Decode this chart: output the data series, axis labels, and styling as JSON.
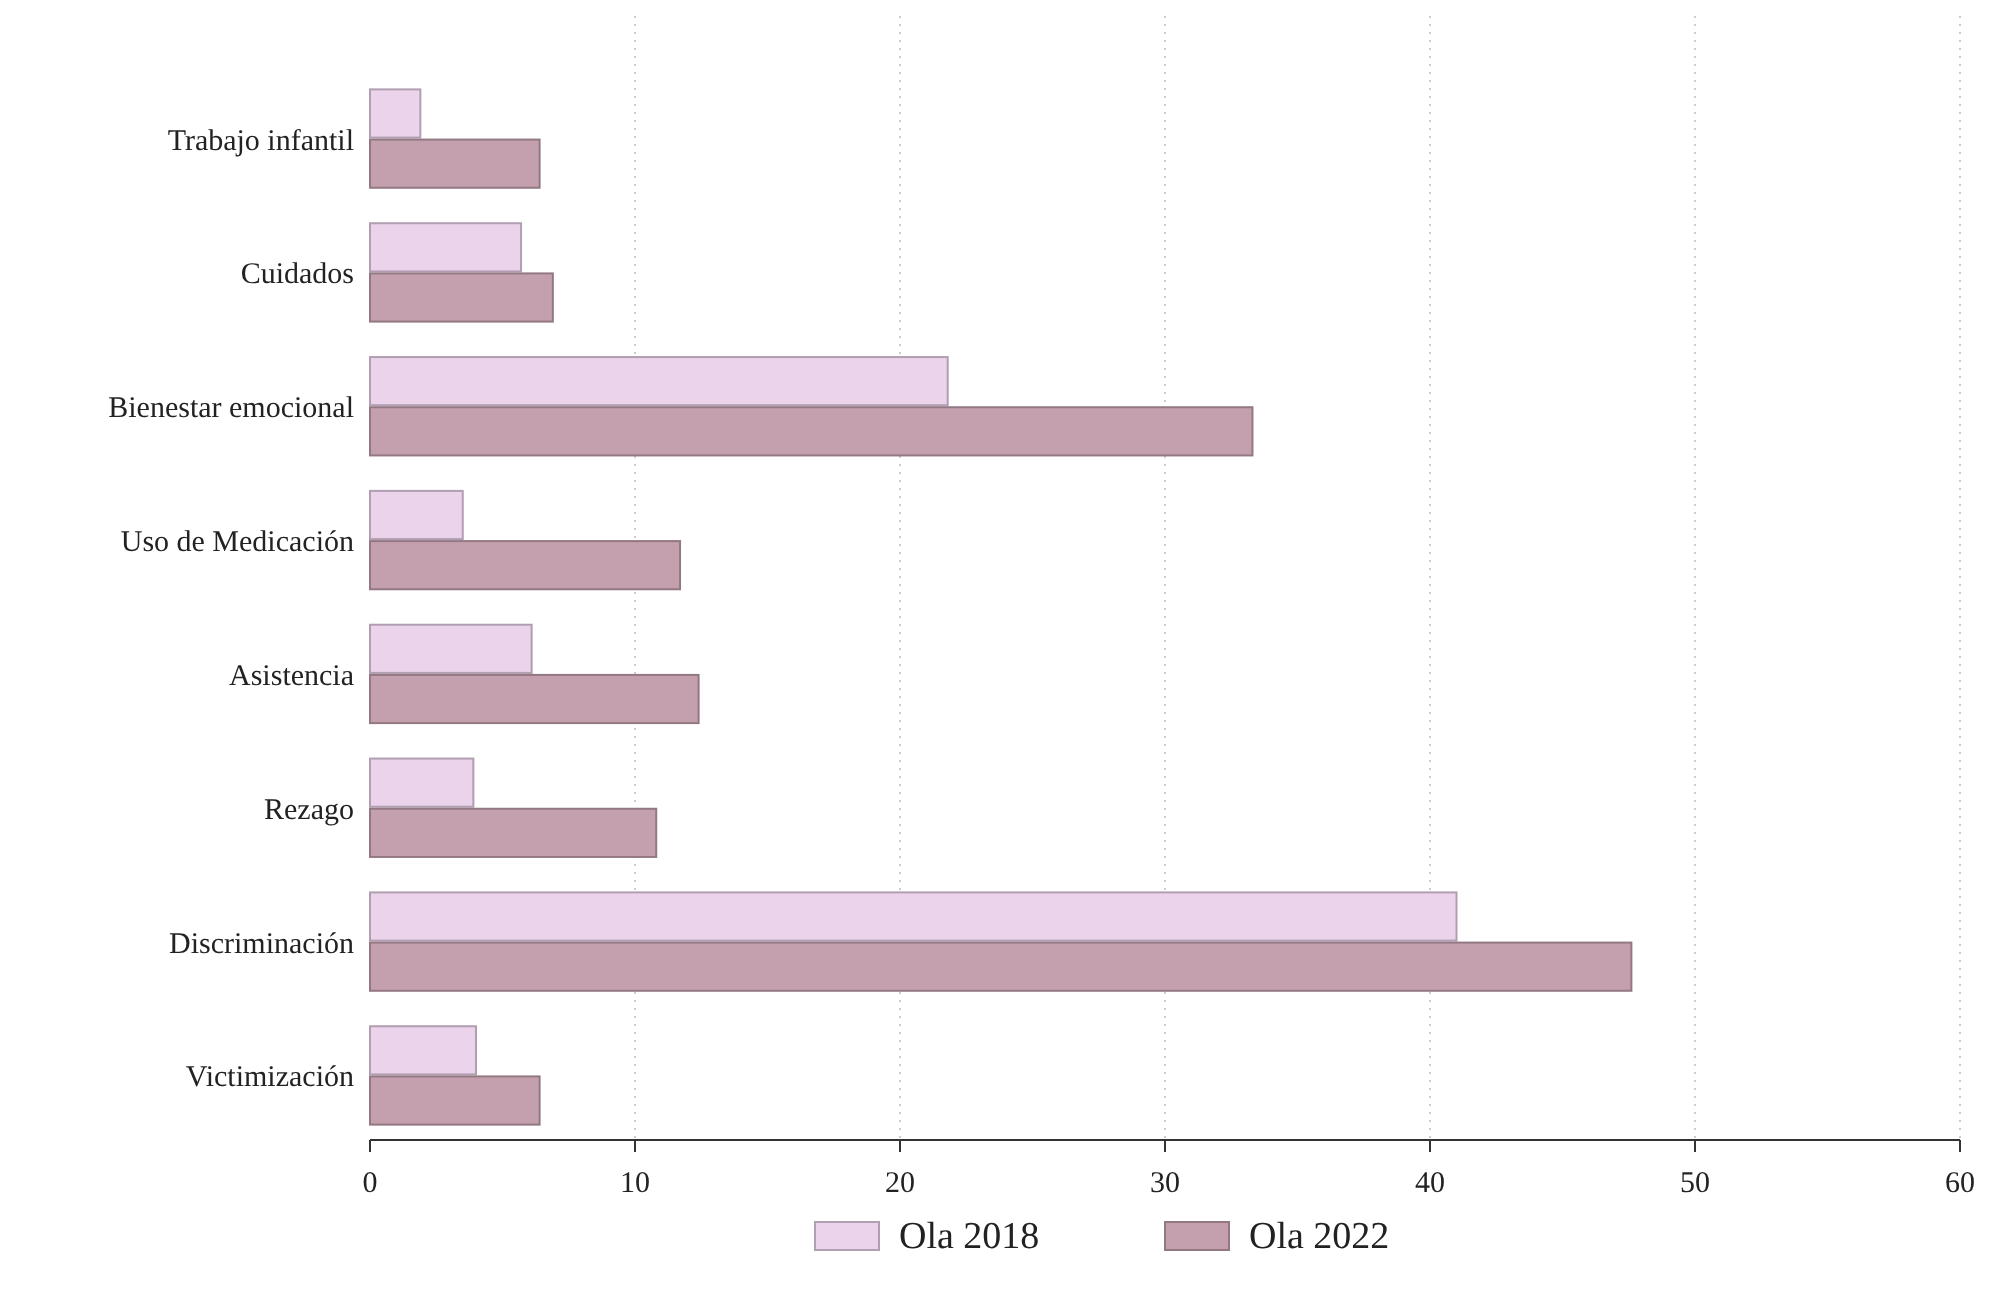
{
  "chart_data": {
    "type": "bar",
    "orientation": "horizontal",
    "categories": [
      "Trabajo infantil",
      "Cuidados",
      "Bienestar emocional",
      "Uso de Medicación",
      "Asistencia",
      "Rezago",
      "Discriminación",
      "Victimización"
    ],
    "series": [
      {
        "name": "Ola 2018",
        "color": "#ebd3eb",
        "values": [
          1.9,
          5.7,
          21.8,
          3.5,
          6.1,
          3.9,
          41.0,
          4.0
        ]
      },
      {
        "name": "Ola 2022",
        "color": "#c4a0ae",
        "values": [
          6.4,
          6.9,
          33.3,
          11.7,
          12.4,
          10.8,
          47.6,
          6.4
        ]
      }
    ],
    "xlim": [
      0,
      60
    ],
    "xticks": [
      0,
      10,
      20,
      30,
      40,
      50,
      60
    ],
    "grid": "x",
    "legend": "bottom"
  }
}
